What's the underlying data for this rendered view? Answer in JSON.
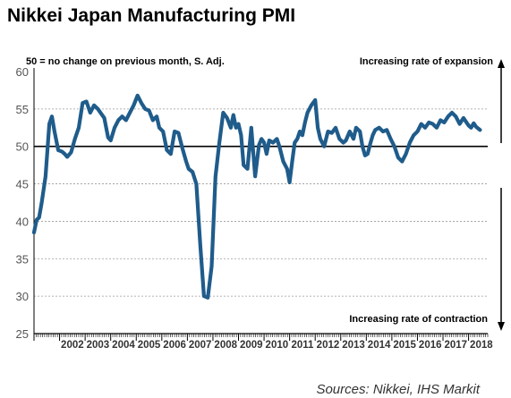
{
  "chart_data": {
    "type": "line",
    "title": "Nikkei Japan Manufacturing PMI",
    "subtitle": "50 = no change on previous month, S. Adj.",
    "annotation_top": "Increasing rate of expansion",
    "annotation_bottom": "Increasing rate of contraction",
    "source": "Sources: Nikkei, IHS Markit",
    "ylim": [
      25,
      60
    ],
    "yticks": [
      "25",
      "30",
      "35",
      "40",
      "45",
      "50",
      "55",
      "60"
    ],
    "reference_line": 50,
    "xlim": [
      2001.0,
      2018.75
    ],
    "xticks": [
      "2002",
      "2003",
      "2004",
      "2005",
      "2006",
      "2007",
      "2008",
      "2009",
      "2010",
      "2011",
      "2012",
      "2013",
      "2014",
      "2015",
      "2016",
      "2017",
      "2018"
    ],
    "series": [
      {
        "color": "#1f5c8b",
        "x": [
          2001.0,
          2001.1,
          2001.2,
          2001.3,
          2001.45,
          2001.6,
          2001.7,
          2001.8,
          2001.95,
          2002.1,
          2002.2,
          2002.3,
          2002.45,
          2002.6,
          2002.75,
          2002.9,
          2003.05,
          2003.2,
          2003.35,
          2003.5,
          2003.6,
          2003.75,
          2003.9,
          2004.0,
          2004.15,
          2004.3,
          2004.45,
          2004.6,
          2004.75,
          2004.9,
          2005.05,
          2005.2,
          2005.35,
          2005.5,
          2005.65,
          2005.8,
          2005.9,
          2006.05,
          2006.2,
          2006.35,
          2006.5,
          2006.65,
          2006.8,
          2006.95,
          2007.05,
          2007.2,
          2007.35,
          2007.5,
          2007.65,
          2007.8,
          2007.95,
          2008.1,
          2008.25,
          2008.4,
          2008.55,
          2008.7,
          2008.8,
          2008.9,
          2009.0,
          2009.1,
          2009.2,
          2009.35,
          2009.5,
          2009.65,
          2009.8,
          2009.9,
          2010.0,
          2010.1,
          2010.2,
          2010.35,
          2010.5,
          2010.6,
          2010.75,
          2010.9,
          2011.0,
          2011.1,
          2011.2,
          2011.3,
          2011.4,
          2011.5,
          2011.6,
          2011.7,
          2011.85,
          2012.0,
          2012.1,
          2012.2,
          2012.35,
          2012.5,
          2012.65,
          2012.8,
          2012.95,
          2013.1,
          2013.2,
          2013.35,
          2013.5,
          2013.6,
          2013.75,
          2013.85,
          2013.95,
          2014.05,
          2014.15,
          2014.25,
          2014.35,
          2014.5,
          2014.65,
          2014.8,
          2014.95,
          2015.1,
          2015.25,
          2015.4,
          2015.55,
          2015.7,
          2015.85,
          2016.0,
          2016.15,
          2016.3,
          2016.45,
          2016.6,
          2016.75,
          2016.9,
          2017.05,
          2017.2,
          2017.35,
          2017.5,
          2017.65,
          2017.8,
          2017.9,
          2018.0,
          2018.1,
          2018.2,
          2018.3,
          2018.45
        ],
        "values": [
          38.5,
          40.2,
          40.5,
          42.5,
          46.0,
          53.0,
          54.0,
          52.0,
          49.5,
          49.3,
          49.0,
          48.6,
          49.2,
          51.0,
          52.5,
          55.8,
          56.0,
          54.5,
          55.5,
          55.0,
          54.5,
          53.8,
          51.2,
          50.8,
          52.5,
          53.5,
          54.0,
          53.5,
          54.5,
          55.5,
          56.8,
          55.8,
          55.0,
          54.8,
          53.5,
          54.0,
          52.5,
          52.0,
          49.5,
          49.0,
          52.0,
          51.8,
          49.8,
          48.0,
          47.0,
          46.6,
          45.0,
          37.0,
          30.0,
          29.8,
          34.0,
          46.0,
          50.5,
          54.5,
          53.8,
          52.5,
          54.2,
          52.5,
          53.0,
          51.5,
          47.5,
          47.0,
          52.5,
          46.0,
          50.2,
          51.0,
          50.5,
          49.0,
          50.8,
          50.5,
          51.0,
          50.0,
          48.0,
          47.0,
          45.2,
          48.0,
          50.5,
          51.0,
          52.0,
          51.5,
          53.2,
          54.5,
          55.5,
          56.2,
          52.5,
          51.0,
          50.0,
          52.0,
          51.8,
          52.5,
          51.0,
          50.5,
          50.8,
          52.0,
          51.0,
          52.5,
          52.0,
          50.0,
          48.8,
          49.0,
          50.3,
          51.5,
          52.2,
          52.5,
          52.0,
          52.2,
          51.0,
          50.0,
          48.5,
          48.0,
          49.0,
          50.5,
          51.5,
          52.0,
          53.0,
          52.5,
          53.2,
          53.0,
          52.5,
          53.5,
          53.2,
          54.0,
          54.5,
          54.0,
          53.0,
          53.8,
          53.3,
          52.8,
          52.5,
          53.1,
          52.6,
          52.2
        ]
      }
    ]
  }
}
